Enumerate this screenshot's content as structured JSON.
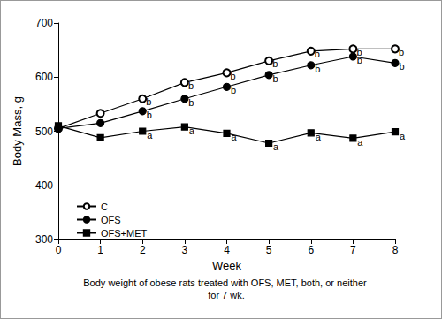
{
  "chart_data": {
    "type": "line",
    "caption": "Body weight of obese rats treated with OFS, MET, both, or neither for 7 wk.",
    "xlabel": "Week",
    "ylabel": "Body Mass, g",
    "x": [
      0,
      1,
      2,
      3,
      4,
      5,
      6,
      7,
      8
    ],
    "series": [
      {
        "name": "C",
        "color": "#000000",
        "marker": "circle-open",
        "values": [
          505,
          533,
          560,
          590,
          608,
          630,
          648,
          652,
          652
        ],
        "annotations": [
          null,
          null,
          "b",
          "b",
          "b",
          "b",
          "b",
          "b",
          "b"
        ]
      },
      {
        "name": "OFS",
        "color": "#000000",
        "marker": "circle",
        "values": [
          505,
          515,
          537,
          560,
          582,
          604,
          622,
          638,
          626
        ],
        "annotations": [
          null,
          null,
          "b",
          "b",
          "b",
          "b",
          "b",
          "b",
          "b"
        ]
      },
      {
        "name": "OFS+MET",
        "color": "#000000",
        "marker": "square",
        "values": [
          510,
          488,
          500,
          508,
          496,
          478,
          497,
          487,
          499
        ],
        "annotations": [
          null,
          null,
          "a",
          "a",
          "a",
          "a",
          "a",
          "a",
          "a"
        ]
      }
    ],
    "xlim": [
      0,
      8
    ],
    "xticks": [
      0,
      1,
      2,
      3,
      4,
      5,
      6,
      7,
      8
    ],
    "ylim": [
      300,
      700
    ],
    "yticks": [
      300,
      400,
      500,
      600,
      700
    ],
    "grid": false,
    "legend": "left"
  }
}
